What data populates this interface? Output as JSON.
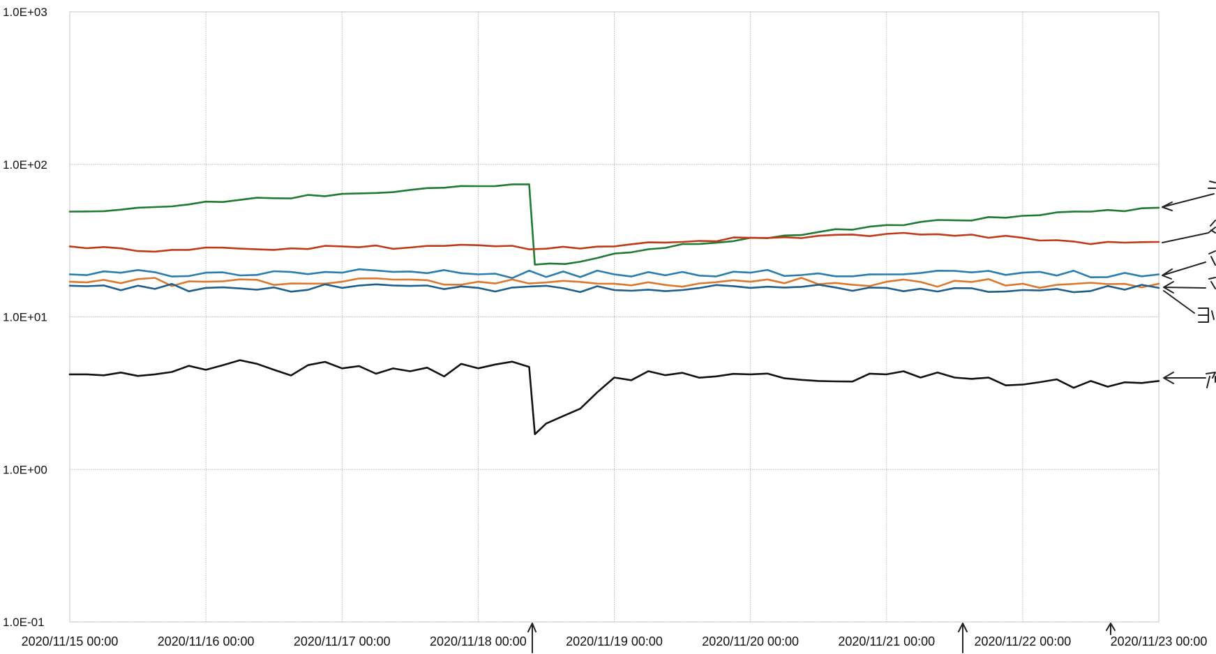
{
  "chart_data": {
    "type": "line",
    "title": "",
    "xlabel": "",
    "ylabel": "",
    "y_scale": "log",
    "ylim": [
      0.1,
      1000
    ],
    "y_ticks": [
      {
        "value": 1000,
        "label": "1.0E+03"
      },
      {
        "value": 100,
        "label": "1.0E+02"
      },
      {
        "value": 10,
        "label": "1.0E+01"
      },
      {
        "value": 1,
        "label": "1.0E+00"
      },
      {
        "value": 0.1,
        "label": "1.0E-01"
      }
    ],
    "xlim": [
      "2020/11/15 00:00",
      "2020/11/23 00:00"
    ],
    "x_ticks": [
      "2020/11/15 00:00",
      "2020/11/16 00:00",
      "2020/11/17 00:00",
      "2020/11/18 00:00",
      "2020/11/19 00:00",
      "2020/11/20 00:00",
      "2020/11/21 00:00",
      "2020/11/22 00:00",
      "2020/11/23 00:00"
    ],
    "grid": true,
    "legend": "none",
    "series": [
      {
        "color": "#1f7a32",
        "points": [
          [
            "2020/11/15 00:00",
            49
          ],
          [
            "2020/11/15 12:00",
            52
          ],
          [
            "2020/11/16 00:00",
            57
          ],
          [
            "2020/11/16 12:00",
            60
          ],
          [
            "2020/11/17 00:00",
            64
          ],
          [
            "2020/11/17 12:00",
            68
          ],
          [
            "2020/11/18 00:00",
            72
          ],
          [
            "2020/11/18 09:00",
            74
          ],
          [
            "2020/11/18 10:00",
            22
          ],
          [
            "2020/11/18 18:00",
            23
          ],
          [
            "2020/11/19 00:00",
            26
          ],
          [
            "2020/11/19 12:00",
            30
          ],
          [
            "2020/11/20 00:00",
            33
          ],
          [
            "2020/11/20 12:00",
            36
          ],
          [
            "2020/11/21 00:00",
            40
          ],
          [
            "2020/11/21 12:00",
            43
          ],
          [
            "2020/11/22 00:00",
            46
          ],
          [
            "2020/11/22 12:00",
            49
          ],
          [
            "2020/11/23 00:00",
            52
          ]
        ]
      },
      {
        "color": "#c0391b",
        "points": [
          [
            "2020/11/15 00:00",
            29
          ],
          [
            "2020/11/15 12:00",
            27
          ],
          [
            "2020/11/16 00:00",
            28.5
          ],
          [
            "2020/11/16 12:00",
            27.5
          ],
          [
            "2020/11/17 00:00",
            29
          ],
          [
            "2020/11/17 12:00",
            28.5
          ],
          [
            "2020/11/18 00:00",
            29.5
          ],
          [
            "2020/11/18 12:00",
            28
          ],
          [
            "2020/11/19 00:00",
            29
          ],
          [
            "2020/11/19 12:00",
            31
          ],
          [
            "2020/11/20 00:00",
            33
          ],
          [
            "2020/11/20 12:00",
            34
          ],
          [
            "2020/11/21 00:00",
            35
          ],
          [
            "2020/11/21 12:00",
            34
          ],
          [
            "2020/11/22 00:00",
            33
          ],
          [
            "2020/11/22 12:00",
            30
          ],
          [
            "2020/11/23 00:00",
            31
          ]
        ]
      },
      {
        "color": "#2a7bb0",
        "points": [
          [
            "2020/11/15 00:00",
            19
          ],
          [
            "2020/11/16 00:00",
            19.5
          ],
          [
            "2020/11/17 00:00",
            19.5
          ],
          [
            "2020/11/18 00:00",
            19
          ],
          [
            "2020/11/19 00:00",
            19
          ],
          [
            "2020/11/20 00:00",
            19.5
          ],
          [
            "2020/11/21 00:00",
            19
          ],
          [
            "2020/11/22 00:00",
            19.5
          ],
          [
            "2020/11/23 00:00",
            19
          ]
        ]
      },
      {
        "color": "#d9782e",
        "points": [
          [
            "2020/11/15 00:00",
            17
          ],
          [
            "2020/11/16 00:00",
            17
          ],
          [
            "2020/11/17 00:00",
            17
          ],
          [
            "2020/11/18 00:00",
            17
          ],
          [
            "2020/11/19 00:00",
            16.5
          ],
          [
            "2020/11/20 00:00",
            17
          ],
          [
            "2020/11/21 00:00",
            17
          ],
          [
            "2020/11/22 00:00",
            16.5
          ],
          [
            "2020/11/23 00:00",
            16.5
          ]
        ]
      },
      {
        "color": "#1d5e8c",
        "points": [
          [
            "2020/11/15 00:00",
            16
          ],
          [
            "2020/11/16 00:00",
            15.5
          ],
          [
            "2020/11/17 00:00",
            15.5
          ],
          [
            "2020/11/18 00:00",
            15.5
          ],
          [
            "2020/11/19 00:00",
            15
          ],
          [
            "2020/11/20 00:00",
            15.5
          ],
          [
            "2020/11/21 00:00",
            15.5
          ],
          [
            "2020/11/22 00:00",
            15
          ],
          [
            "2020/11/23 00:00",
            15.5
          ]
        ]
      },
      {
        "color": "#111111",
        "points": [
          [
            "2020/11/15 00:00",
            4.2
          ],
          [
            "2020/11/15 12:00",
            4.1
          ],
          [
            "2020/11/16 00:00",
            4.5
          ],
          [
            "2020/11/16 06:00",
            5.2
          ],
          [
            "2020/11/16 12:00",
            4.5
          ],
          [
            "2020/11/17 00:00",
            4.6
          ],
          [
            "2020/11/17 12:00",
            4.4
          ],
          [
            "2020/11/18 00:00",
            4.6
          ],
          [
            "2020/11/18 09:00",
            4.7
          ],
          [
            "2020/11/18 10:00",
            1.7
          ],
          [
            "2020/11/18 12:00",
            2.0
          ],
          [
            "2020/11/18 18:00",
            2.5
          ],
          [
            "2020/11/18 21:00",
            3.2
          ],
          [
            "2020/11/19 00:00",
            4.0
          ],
          [
            "2020/11/19 12:00",
            4.3
          ],
          [
            "2020/11/20 00:00",
            4.2
          ],
          [
            "2020/11/20 12:00",
            3.8
          ],
          [
            "2020/11/21 00:00",
            4.2
          ],
          [
            "2020/11/21 12:00",
            4.0
          ],
          [
            "2020/11/22 00:00",
            3.6
          ],
          [
            "2020/11/22 12:00",
            3.8
          ],
          [
            "2020/11/23 00:00",
            3.8
          ]
        ]
      }
    ]
  }
}
